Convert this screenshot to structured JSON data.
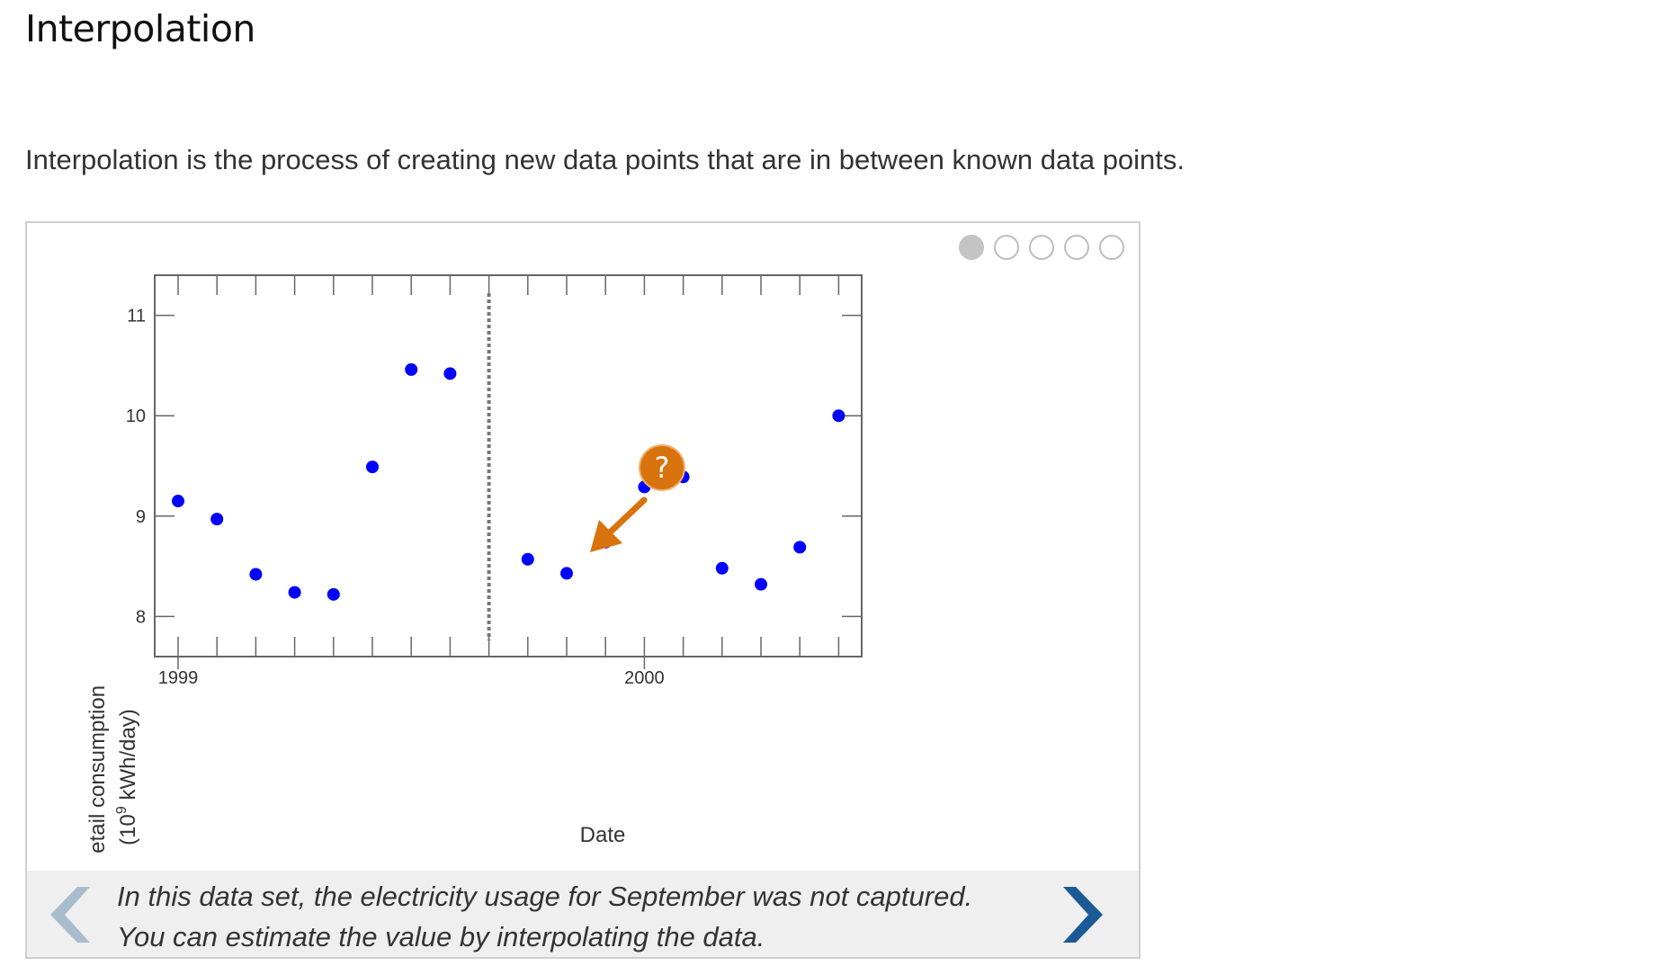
{
  "page": {
    "title": "Interpolation",
    "intro": "Interpolation is the process of creating new data points that are in between known data points."
  },
  "slideshow": {
    "slides": 5,
    "active_slide": 1,
    "caption_line1": "In this data set, the electricity usage for September was not captured.",
    "caption_line2": "You can estimate the value by interpolating the data.",
    "prev_icon": "chevron-left-icon",
    "next_icon": "chevron-right-icon",
    "prev_enabled": false,
    "next_enabled": true
  },
  "colors": {
    "points": "#0000ff",
    "callout": "#d9730d",
    "nav_active": "#1b5a94",
    "nav_disabled": "#a8bccd"
  },
  "chart_data": {
    "type": "scatter",
    "xlabel": "Date",
    "ylabel_line1": "Retail consumption",
    "ylabel_line2_prefix": "(10",
    "ylabel_line2_sup": "9",
    "ylabel_line2_suffix": " kWh/day)",
    "ylim": [
      7.6,
      11.4
    ],
    "y_ticks": [
      8,
      9,
      10,
      11
    ],
    "x_tick_labels": [
      {
        "month": 1,
        "label": "1999"
      },
      {
        "month": 13,
        "label": "2000"
      }
    ],
    "missing_month": 9,
    "missing_marker": "?",
    "points": [
      {
        "month": 1,
        "y": 9.15
      },
      {
        "month": 2,
        "y": 8.97
      },
      {
        "month": 3,
        "y": 8.42
      },
      {
        "month": 4,
        "y": 8.24
      },
      {
        "month": 5,
        "y": 8.22
      },
      {
        "month": 6,
        "y": 9.49
      },
      {
        "month": 7,
        "y": 10.46
      },
      {
        "month": 8,
        "y": 10.42
      },
      {
        "month": 10,
        "y": 8.57
      },
      {
        "month": 11,
        "y": 8.43
      },
      {
        "month": 12,
        "y": 8.74
      },
      {
        "month": 13,
        "y": 9.29
      },
      {
        "month": 14,
        "y": 9.39
      },
      {
        "month": 15,
        "y": 8.48
      },
      {
        "month": 16,
        "y": 8.32
      },
      {
        "month": 17,
        "y": 8.69
      },
      {
        "month": 18,
        "y": 10.0
      }
    ]
  }
}
